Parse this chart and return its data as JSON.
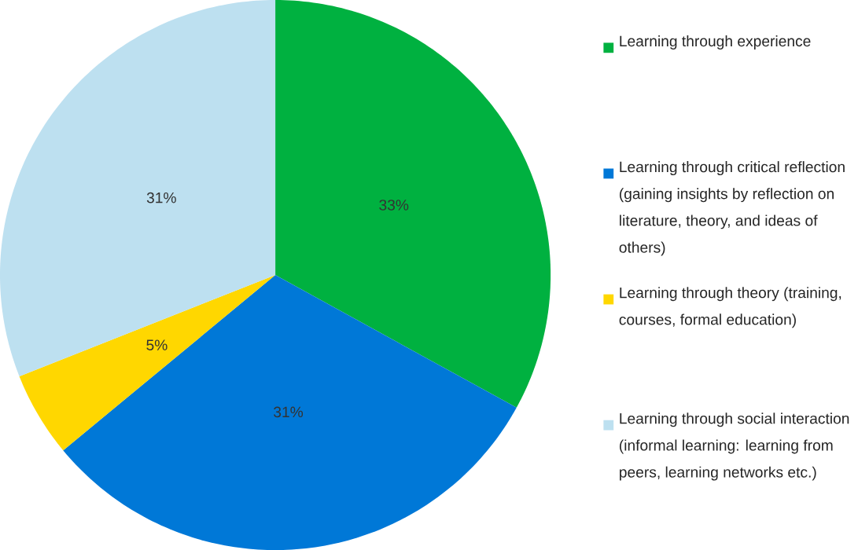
{
  "chart_data": {
    "type": "pie",
    "categories": [
      "Learning through experience",
      "Learning through critical reflection (gaining insights by reflection on literature, theory, and ideas of others)",
      "Learning through theory (training, courses, formal education)",
      "Learning through social interaction (informal learning: learning from peers, learning networks etc.)"
    ],
    "values": [
      33,
      31,
      5,
      31
    ],
    "colors": [
      "#00b140",
      "#0078d7",
      "#ffd700",
      "#bde0f0"
    ],
    "value_labels": [
      "33%",
      "31%",
      "5%",
      "31%"
    ],
    "legend": "right"
  }
}
